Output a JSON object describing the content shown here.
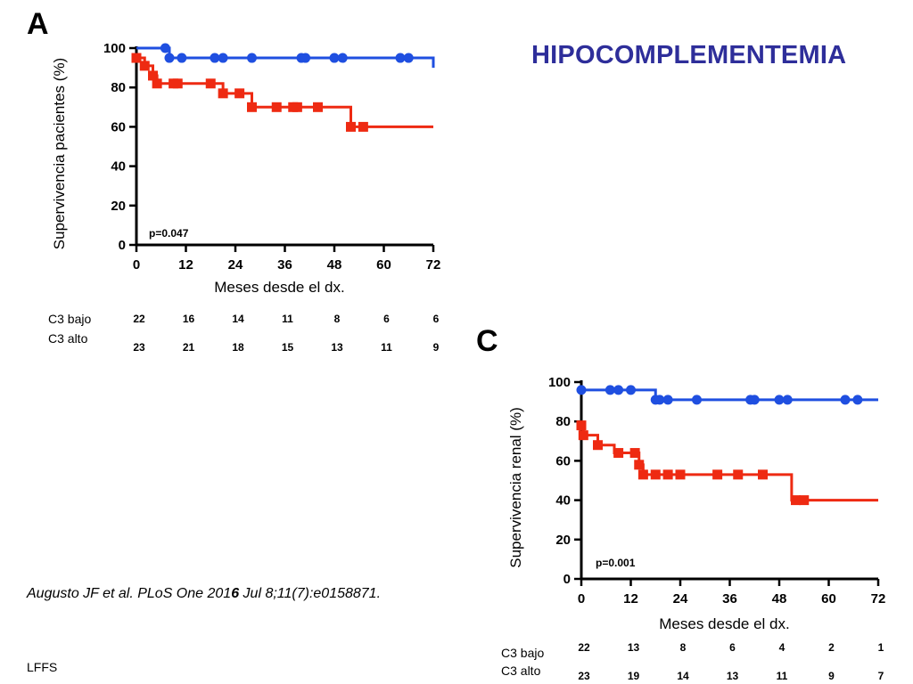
{
  "slide": {
    "title": "HIPOCOMPLEMENTEMIA",
    "citation_pre": "Augusto JF et al. PLoS One 201",
    "citation_bold": "6",
    "citation_post": " Jul 8;11(7):e0158871.",
    "footer": "LFFS"
  },
  "colors": {
    "series_blue": "#1f4fe0",
    "series_red": "#ee2a12",
    "title": "#2e2e9a"
  },
  "chart_data": [
    {
      "panel": "A",
      "type": "line",
      "step": true,
      "ylabel": "Supervivencia pacientes (%)",
      "xlabel": "Meses desde el dx.",
      "xlim": [
        0,
        72
      ],
      "ylim": [
        0,
        100
      ],
      "xticks": [
        "0",
        "12",
        "24",
        "36",
        "48",
        "60",
        "72"
      ],
      "yticks": [
        "0",
        "20",
        "40",
        "60",
        "80",
        "100"
      ],
      "annotation": "p=0.047",
      "grid": false,
      "series": [
        {
          "color": "#1f4fe0",
          "marker": "circle",
          "steps": [
            [
              0,
              100
            ],
            [
              8,
              95
            ],
            [
              72,
              90
            ]
          ],
          "end_x": 72,
          "censored": [
            [
              7,
              100
            ],
            [
              8,
              95
            ],
            [
              11,
              95
            ],
            [
              19,
              95
            ],
            [
              21,
              95
            ],
            [
              28,
              95
            ],
            [
              40,
              95
            ],
            [
              41,
              95
            ],
            [
              48,
              95
            ],
            [
              50,
              95
            ],
            [
              64,
              95
            ],
            [
              66,
              95
            ]
          ]
        },
        {
          "color": "#ee2a12",
          "marker": "square",
          "steps": [
            [
              0,
              95
            ],
            [
              2,
              91
            ],
            [
              4,
              86
            ],
            [
              5,
              82
            ],
            [
              21,
              77
            ],
            [
              28,
              70
            ],
            [
              52,
              60
            ]
          ],
          "end_x": 72,
          "censored": [
            [
              0,
              95
            ],
            [
              2,
              91
            ],
            [
              4,
              86
            ],
            [
              5,
              82
            ],
            [
              9,
              82
            ],
            [
              10,
              82
            ],
            [
              18,
              82
            ],
            [
              21,
              77
            ],
            [
              25,
              77
            ],
            [
              28,
              70
            ],
            [
              34,
              70
            ],
            [
              38,
              70
            ],
            [
              39,
              70
            ],
            [
              44,
              70
            ],
            [
              52,
              60
            ],
            [
              55,
              60
            ]
          ]
        }
      ],
      "risk_table": {
        "rows": [
          {
            "label": "C3 bajo",
            "values": [
              "22",
              "16",
              "14",
              "11",
              "8",
              "6",
              "6"
            ]
          },
          {
            "label": "C3 alto",
            "values": [
              "23",
              "21",
              "18",
              "15",
              "13",
              "11",
              "9"
            ]
          }
        ]
      }
    },
    {
      "panel": "C",
      "type": "line",
      "step": true,
      "ylabel": "Supervivencia renal (%)",
      "xlabel": "Meses desde el dx.",
      "xlim": [
        0,
        72
      ],
      "ylim": [
        0,
        100
      ],
      "xticks": [
        "0",
        "12",
        "24",
        "36",
        "48",
        "60",
        "72"
      ],
      "yticks": [
        "0",
        "20",
        "40",
        "60",
        "80",
        "100"
      ],
      "annotation": "p=0.001",
      "grid": false,
      "series": [
        {
          "color": "#1f4fe0",
          "marker": "circle",
          "steps": [
            [
              0,
              96
            ],
            [
              18,
              91
            ]
          ],
          "end_x": 72,
          "censored": [
            [
              0,
              96
            ],
            [
              7,
              96
            ],
            [
              9,
              96
            ],
            [
              12,
              96
            ],
            [
              18,
              91
            ],
            [
              19,
              91
            ],
            [
              21,
              91
            ],
            [
              28,
              91
            ],
            [
              41,
              91
            ],
            [
              42,
              91
            ],
            [
              48,
              91
            ],
            [
              50,
              91
            ],
            [
              64,
              91
            ],
            [
              67,
              91
            ]
          ]
        },
        {
          "color": "#ee2a12",
          "marker": "square",
          "steps": [
            [
              0,
              78
            ],
            [
              0.5,
              73
            ],
            [
              4,
              68
            ],
            [
              8,
              64
            ],
            [
              14,
              58
            ],
            [
              15,
              53
            ],
            [
              51,
              40
            ]
          ],
          "end_x": 72,
          "censored": [
            [
              0,
              78
            ],
            [
              0.5,
              73
            ],
            [
              4,
              68
            ],
            [
              9,
              64
            ],
            [
              13,
              64
            ],
            [
              14,
              58
            ],
            [
              15,
              53
            ],
            [
              18,
              53
            ],
            [
              21,
              53
            ],
            [
              24,
              53
            ],
            [
              33,
              53
            ],
            [
              38,
              53
            ],
            [
              44,
              53
            ],
            [
              52,
              40
            ],
            [
              54,
              40
            ]
          ]
        }
      ],
      "risk_table": {
        "rows": [
          {
            "label": "C3 bajo",
            "values": [
              "22",
              "13",
              "8",
              "6",
              "4",
              "2",
              "1"
            ]
          },
          {
            "label": "C3 alto",
            "values": [
              "23",
              "19",
              "14",
              "13",
              "11",
              "9",
              "7"
            ]
          }
        ]
      }
    }
  ]
}
